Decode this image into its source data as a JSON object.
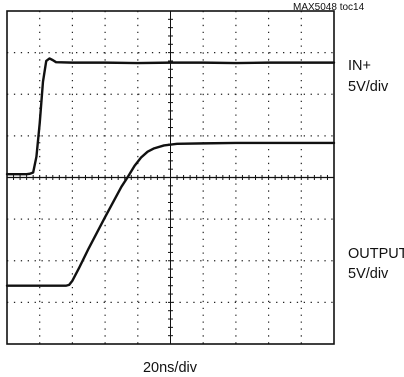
{
  "chart_data": {
    "type": "line",
    "figure_id": "MAX5048 toc14",
    "timebase": "20ns/div",
    "divisions": {
      "x": 10,
      "y": 8
    },
    "x_unit": "ns",
    "xlim": [
      0,
      200
    ],
    "grid": true,
    "series": [
      {
        "name": "IN+",
        "scale": "5V/div",
        "color": "#111111",
        "points": [
          [
            0,
            4.08
          ],
          [
            4,
            4.08
          ],
          [
            8,
            4.08
          ],
          [
            12,
            4.08
          ],
          [
            14,
            4.09
          ],
          [
            16,
            4.12
          ],
          [
            18,
            4.5
          ],
          [
            20,
            5.3
          ],
          [
            22,
            6.3
          ],
          [
            24,
            6.8
          ],
          [
            26,
            6.86
          ],
          [
            28,
            6.82
          ],
          [
            30,
            6.77
          ],
          [
            40,
            6.76
          ],
          [
            60,
            6.76
          ],
          [
            80,
            6.75
          ],
          [
            100,
            6.76
          ],
          [
            120,
            6.76
          ],
          [
            140,
            6.75
          ],
          [
            160,
            6.76
          ],
          [
            180,
            6.76
          ],
          [
            200,
            6.76
          ]
        ]
      },
      {
        "name": "OUTPUT",
        "scale": "5V/div",
        "color": "#111111",
        "points": [
          [
            0,
            1.4
          ],
          [
            20,
            1.4
          ],
          [
            36,
            1.4
          ],
          [
            38,
            1.42
          ],
          [
            40,
            1.52
          ],
          [
            44,
            1.82
          ],
          [
            50,
            2.3
          ],
          [
            60,
            3.05
          ],
          [
            70,
            3.78
          ],
          [
            74,
            4.02
          ],
          [
            78,
            4.28
          ],
          [
            82,
            4.48
          ],
          [
            86,
            4.62
          ],
          [
            90,
            4.7
          ],
          [
            96,
            4.77
          ],
          [
            104,
            4.81
          ],
          [
            120,
            4.82
          ],
          [
            140,
            4.83
          ],
          [
            160,
            4.83
          ],
          [
            180,
            4.83
          ],
          [
            200,
            4.83
          ]
        ]
      }
    ]
  }
}
